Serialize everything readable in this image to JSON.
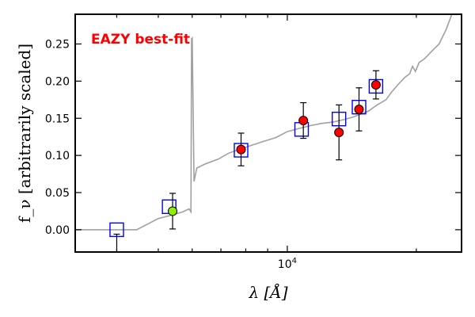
{
  "chart_data": {
    "type": "scatter",
    "title": "",
    "annotation": {
      "text": "EAZY best-fit",
      "color": "#ff0000"
    },
    "xlabel": "λ [Å]",
    "ylabel": "f_ν [arbitrarily scaled]",
    "xscale": "log",
    "xlim": [
      3200,
      25500
    ],
    "ylim": [
      -0.03,
      0.29
    ],
    "x_ticks": [
      {
        "value": 10000,
        "label": "10^4"
      }
    ],
    "y_ticks": [
      {
        "value": 0.0,
        "label": "0.00"
      },
      {
        "value": 0.05,
        "label": "0.05"
      },
      {
        "value": 0.1,
        "label": "0.10"
      },
      {
        "value": 0.15,
        "label": "0.15"
      },
      {
        "value": 0.2,
        "label": "0.20"
      },
      {
        "value": 0.25,
        "label": "0.25"
      }
    ],
    "grid": false,
    "series": [
      {
        "kind": "line",
        "color": "#a0a0a0",
        "x": [
          3200,
          4300,
          4450,
          4700,
          5000,
          5400,
          5700,
          5900,
          5960,
          5980,
          6000,
          6060,
          6150,
          6400,
          6900,
          7300,
          7900,
          8700,
          9400,
          10000,
          10600,
          11300,
          12000,
          12800,
          13500,
          14300,
          14900,
          15500,
          16200,
          17000,
          17500,
          18100,
          18800,
          19300,
          19600,
          19900,
          20300,
          20900,
          21700,
          22600,
          23500,
          24200
        ],
        "y": [
          0.0,
          0.0,
          0.0,
          0.007,
          0.015,
          0.02,
          0.024,
          0.028,
          0.024,
          0.257,
          0.258,
          0.065,
          0.083,
          0.088,
          0.095,
          0.103,
          0.11,
          0.118,
          0.124,
          0.132,
          0.136,
          0.14,
          0.143,
          0.145,
          0.148,
          0.152,
          0.156,
          0.16,
          0.168,
          0.175,
          0.185,
          0.195,
          0.205,
          0.21,
          0.22,
          0.213,
          0.225,
          0.23,
          0.24,
          0.25,
          0.27,
          0.29
        ]
      },
      {
        "kind": "square",
        "color": "#0000ff",
        "points": [
          [
            4000,
            0.0
          ],
          [
            5300,
            0.031
          ],
          [
            7800,
            0.107
          ],
          [
            10800,
            0.135
          ],
          [
            13200,
            0.149
          ],
          [
            14700,
            0.165
          ],
          [
            16100,
            0.193
          ]
        ]
      },
      {
        "kind": "errorbar",
        "color": "#ff0000",
        "points": [
          {
            "x": 5400,
            "y": 0.025,
            "err": 0.024,
            "color": "#90ee00"
          },
          {
            "x": 7800,
            "y": 0.108,
            "err": 0.022
          },
          {
            "x": 10900,
            "y": 0.147,
            "err": 0.024
          },
          {
            "x": 13200,
            "y": 0.131,
            "err": 0.037
          },
          {
            "x": 14700,
            "y": 0.162,
            "err": 0.029
          },
          {
            "x": 16100,
            "y": 0.195,
            "err": 0.019
          }
        ]
      },
      {
        "kind": "errorbar-stub",
        "x": 4000,
        "y": -0.03,
        "top": -0.006
      }
    ]
  }
}
